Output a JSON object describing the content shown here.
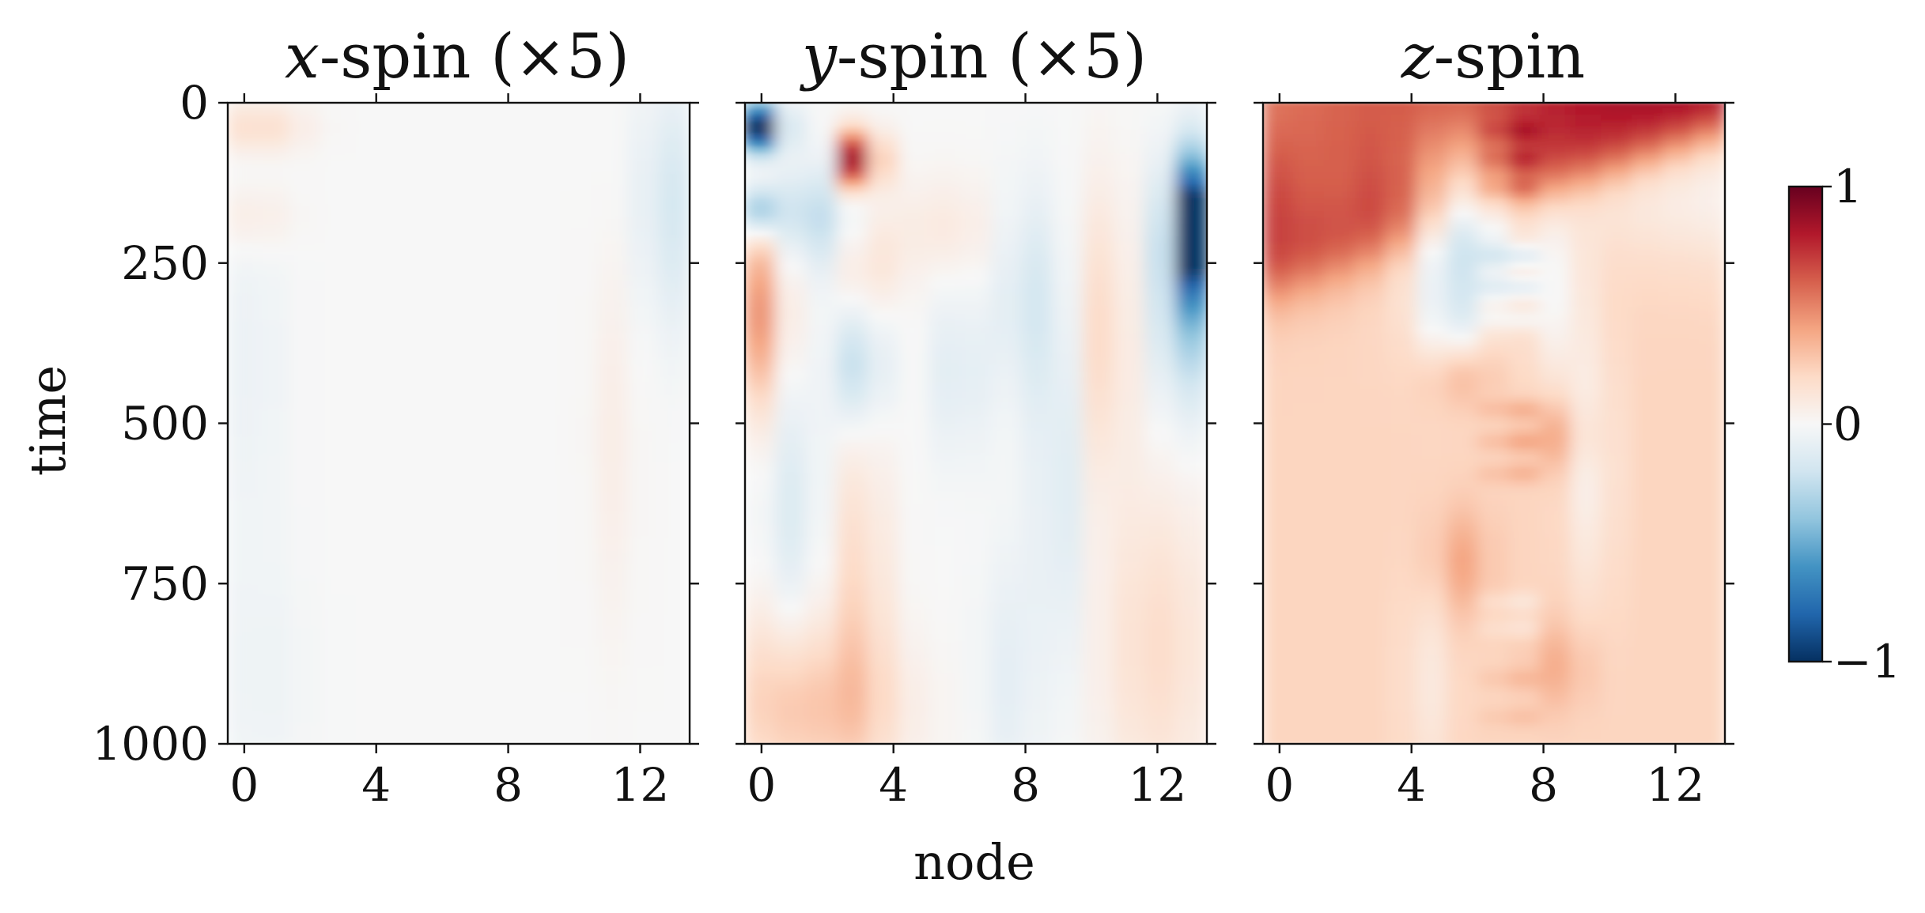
{
  "chart_data": [
    {
      "type": "heatmap",
      "title_var": "x",
      "title_rest": "-spin (×5)",
      "xlabel": "",
      "ylabel": "time",
      "x_ticks": [
        "0",
        "4",
        "8",
        "12"
      ],
      "y_ticks": [
        "0",
        "250",
        "500",
        "750",
        "1000"
      ],
      "x_range": [
        -0.5,
        13.5
      ],
      "y_range": [
        0,
        1000
      ],
      "scale_factor": 5,
      "value_range": [
        -1,
        1
      ],
      "colormap": "RdBu_r",
      "features": [
        {
          "node": 0.4,
          "time": 40,
          "value": 0.18,
          "sx": 1.0,
          "st": 30
        },
        {
          "node": 0.3,
          "time": 180,
          "value": 0.1,
          "sx": 0.8,
          "st": 40
        },
        {
          "node": 13.0,
          "time": 120,
          "value": -0.12,
          "sx": 0.8,
          "st": 110
        },
        {
          "node": 13.2,
          "time": 250,
          "value": -0.08,
          "sx": 0.8,
          "st": 120
        },
        {
          "node": 0.2,
          "time": 400,
          "value": -0.06,
          "sx": 0.8,
          "st": 200
        },
        {
          "node": 11.2,
          "time": 520,
          "value": 0.07,
          "sx": 0.5,
          "st": 220
        },
        {
          "node": 0.5,
          "time": 900,
          "value": -0.05,
          "sx": 1.0,
          "st": 150
        }
      ]
    },
    {
      "type": "heatmap",
      "title_var": "y",
      "title_rest": "-spin (×5)",
      "xlabel": "node",
      "ylabel": "",
      "x_ticks": [
        "0",
        "4",
        "8",
        "12"
      ],
      "y_ticks": [],
      "x_range": [
        -0.5,
        13.5
      ],
      "y_range": [
        0,
        1000
      ],
      "scale_factor": 5,
      "value_range": [
        -1,
        1
      ],
      "colormap": "RdBu_r",
      "features": [
        {
          "node": 0.0,
          "time": 40,
          "value": -1.0,
          "sx": 0.45,
          "st": 28
        },
        {
          "node": 3.0,
          "time": 90,
          "value": 1.0,
          "sx": 0.4,
          "st": 32
        },
        {
          "node": 0.1,
          "time": 170,
          "value": -0.45,
          "sx": 0.4,
          "st": 30
        },
        {
          "node": 13.2,
          "time": 190,
          "value": -1.0,
          "sx": 0.5,
          "st": 75
        },
        {
          "node": 13.0,
          "time": 300,
          "value": -0.4,
          "sx": 0.7,
          "st": 120
        },
        {
          "node": 0.0,
          "time": 330,
          "value": 0.45,
          "sx": 0.55,
          "st": 110
        },
        {
          "node": 1.6,
          "time": 180,
          "value": -0.25,
          "sx": 0.8,
          "st": 60
        },
        {
          "node": 3.0,
          "time": 410,
          "value": -0.28,
          "sx": 0.5,
          "st": 70
        },
        {
          "node": 3.2,
          "time": 260,
          "value": 0.15,
          "sx": 0.6,
          "st": 60
        },
        {
          "node": 5.5,
          "time": 200,
          "value": 0.1,
          "sx": 1.2,
          "st": 60
        },
        {
          "node": 8.0,
          "time": 300,
          "value": -0.2,
          "sx": 0.5,
          "st": 120
        },
        {
          "node": 6.0,
          "time": 420,
          "value": -0.15,
          "sx": 0.5,
          "st": 100
        },
        {
          "node": 10.5,
          "time": 360,
          "value": 0.22,
          "sx": 0.5,
          "st": 160
        },
        {
          "node": 9.0,
          "time": 600,
          "value": -0.15,
          "sx": 0.5,
          "st": 220
        },
        {
          "node": 3.0,
          "time": 760,
          "value": 0.2,
          "sx": 0.6,
          "st": 180
        },
        {
          "node": 1.0,
          "time": 650,
          "value": -0.15,
          "sx": 0.6,
          "st": 200
        },
        {
          "node": 0.5,
          "time": 930,
          "value": 0.22,
          "sx": 1.2,
          "st": 110
        },
        {
          "node": 2.5,
          "time": 950,
          "value": 0.18,
          "sx": 1.5,
          "st": 90
        },
        {
          "node": 12.0,
          "time": 850,
          "value": 0.18,
          "sx": 1.2,
          "st": 180
        },
        {
          "node": 7.5,
          "time": 900,
          "value": -0.1,
          "sx": 0.6,
          "st": 150
        }
      ]
    },
    {
      "type": "heatmap",
      "title_var": "z",
      "title_rest": "-spin",
      "xlabel": "",
      "ylabel": "",
      "x_ticks": [
        "0",
        "4",
        "8",
        "12"
      ],
      "y_ticks": [],
      "x_range": [
        -0.5,
        13.5
      ],
      "y_range": [
        0,
        1000
      ],
      "scale_factor": 1,
      "value_range": [
        -1,
        1
      ],
      "colormap": "RdBu_r",
      "features": [
        {
          "node": 7.0,
          "time": 45,
          "value": 0.55,
          "sx": 0.25,
          "st": 12
        },
        {
          "node": 7.0,
          "time": 90,
          "value": 0.55,
          "sx": 0.25,
          "st": 12
        },
        {
          "node": 7.0,
          "time": 135,
          "value": 0.5,
          "sx": 0.25,
          "st": 12
        },
        {
          "node": 7.0,
          "time": 240,
          "value": -0.9,
          "sx": 0.25,
          "st": 12
        },
        {
          "node": 7.0,
          "time": 290,
          "value": -0.9,
          "sx": 0.25,
          "st": 12
        },
        {
          "node": 7.0,
          "time": 340,
          "value": -0.55,
          "sx": 0.25,
          "st": 12
        },
        {
          "node": 7.0,
          "time": 480,
          "value": 0.55,
          "sx": 0.25,
          "st": 12
        },
        {
          "node": 7.0,
          "time": 530,
          "value": 0.6,
          "sx": 0.25,
          "st": 12
        },
        {
          "node": 7.0,
          "time": 580,
          "value": 0.5,
          "sx": 0.25,
          "st": 12
        },
        {
          "node": 7.0,
          "time": 780,
          "value": -0.45,
          "sx": 0.25,
          "st": 12
        },
        {
          "node": 7.0,
          "time": 820,
          "value": -0.4,
          "sx": 0.25,
          "st": 12
        },
        {
          "node": 7.0,
          "time": 900,
          "value": 0.35,
          "sx": 0.25,
          "st": 12
        },
        {
          "node": 7.0,
          "time": 960,
          "value": 0.3,
          "sx": 0.25,
          "st": 12
        },
        {
          "node": 5.5,
          "time": 160,
          "value": -0.3,
          "sx": 0.9,
          "st": 80
        },
        {
          "node": 5.2,
          "time": 350,
          "value": -0.25,
          "sx": 0.5,
          "st": 60
        },
        {
          "node": 8.5,
          "time": 300,
          "value": -0.2,
          "sx": 0.5,
          "st": 100
        },
        {
          "node": 9.5,
          "time": 560,
          "value": -0.18,
          "sx": 0.5,
          "st": 150
        },
        {
          "node": 5.5,
          "time": 420,
          "value": 0.2,
          "sx": 0.7,
          "st": 40
        },
        {
          "node": 8.5,
          "time": 520,
          "value": 0.18,
          "sx": 0.6,
          "st": 40
        },
        {
          "node": 5.5,
          "time": 720,
          "value": 0.18,
          "sx": 0.6,
          "st": 60
        },
        {
          "node": 8.5,
          "time": 880,
          "value": 0.15,
          "sx": 0.6,
          "st": 50
        },
        {
          "node": 4.5,
          "time": 900,
          "value": -0.12,
          "sx": 0.5,
          "st": 120
        },
        {
          "node": 1.5,
          "time": 150,
          "value": -0.12,
          "sx": 1.0,
          "st": 60
        }
      ]
    }
  ],
  "colorbar": {
    "ticks": [
      "1",
      "0",
      "−1"
    ],
    "values": [
      1,
      0,
      -1
    ],
    "colormap": "RdBu_r",
    "colors": {
      "max": "#67001f",
      "high": "#b2182b",
      "mid_high": "#d6604d",
      "light_high": "#f4a582",
      "pale_high": "#fddbc7",
      "neutral": "#f7f7f7",
      "pale_low": "#d1e5f0",
      "light_low": "#92c5de",
      "mid_low": "#4393c3",
      "low": "#2166ac",
      "min": "#053061"
    }
  }
}
